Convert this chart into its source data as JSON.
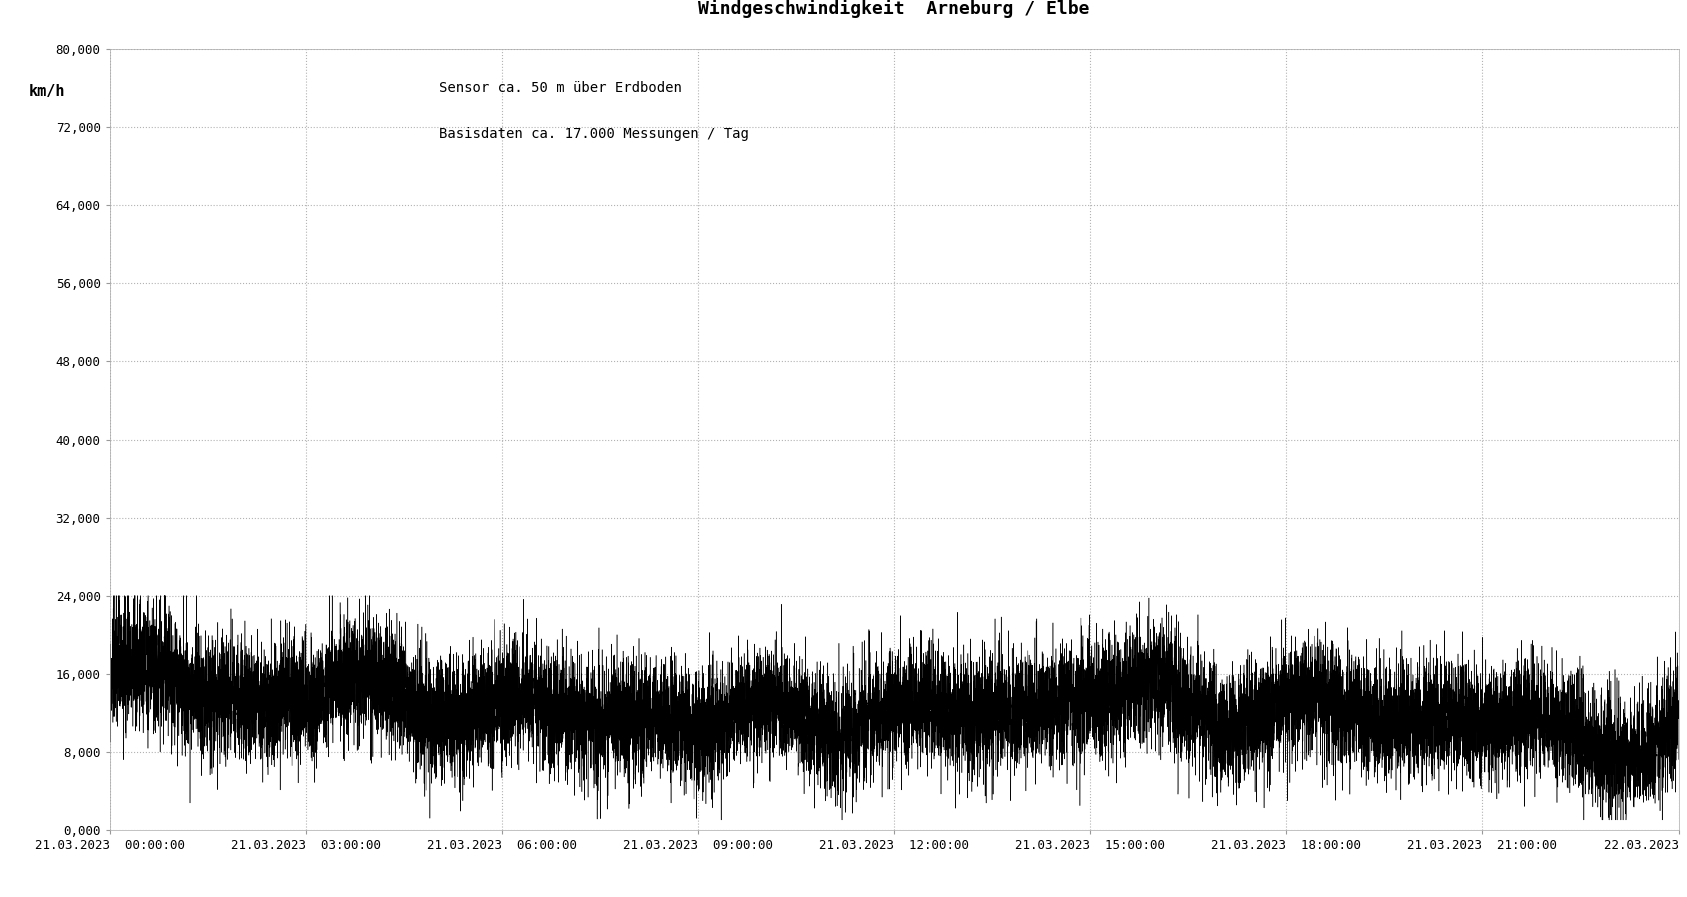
{
  "title": "Windgeschwindigkeit  Arneburg / Elbe",
  "subtitle_line1": "Sensor ca. 50 m über Erdboden",
  "subtitle_line2": "Basisdaten ca. 17.000 Messungen / Tag",
  "ylabel": "km/h",
  "ylim": [
    0,
    80000
  ],
  "yticks": [
    0,
    8000,
    16000,
    24000,
    32000,
    40000,
    48000,
    56000,
    64000,
    72000,
    80000
  ],
  "ytick_labels": [
    "0,000",
    "8,000",
    "16,000",
    "24,000",
    "32,000",
    "40,000",
    "48,000",
    "56,000",
    "64,000",
    "72,000",
    "80,000"
  ],
  "xtick_labels": [
    "21.03.2023  00:00:00",
    "21.03.2023  03:00:00",
    "21.03.2023  06:00:00",
    "21.03.2023  09:00:00",
    "21.03.2023  12:00:00",
    "21.03.2023  15:00:00",
    "21.03.2023  18:00:00",
    "21.03.2023  21:00:00",
    "22.03.2023  00:00:00"
  ],
  "n_points": 17280,
  "plot_bg_color": "#ffffff",
  "left_panel_color": "#dde3ed",
  "line_color": "#000000",
  "grid_color": "#aaaaaa",
  "title_fontsize": 13,
  "subtitle_fontsize": 10,
  "ylabel_fontsize": 11,
  "tick_fontsize": 9,
  "mean_wind": 12000,
  "noise_std": 3000,
  "peak_extra": 8000,
  "seed": 99
}
